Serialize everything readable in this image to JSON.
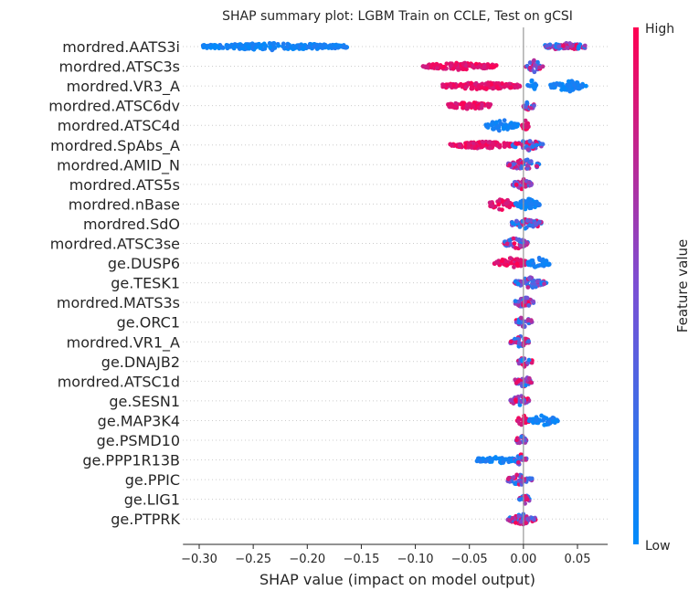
{
  "chart_data": {
    "type": "scatter",
    "title": "SHAP summary plot: LGBM Train on CCLE, Test on gCSI",
    "xlabel": "SHAP value (impact on model output)",
    "ylabel": "",
    "xlim": [
      -0.315,
      0.078
    ],
    "xticks": [
      {
        "value": -0.3,
        "label": "−0.30"
      },
      {
        "value": -0.25,
        "label": "−0.25"
      },
      {
        "value": -0.2,
        "label": "−0.20"
      },
      {
        "value": -0.15,
        "label": "−0.15"
      },
      {
        "value": -0.1,
        "label": "−0.10"
      },
      {
        "value": -0.05,
        "label": "−0.05"
      },
      {
        "value": 0.0,
        "label": "0.00"
      },
      {
        "value": 0.05,
        "label": "0.05"
      }
    ],
    "grid": false,
    "zero_line": true,
    "colorbar": {
      "label": "Feature value",
      "high_label": "High",
      "low_label": "Low",
      "high_color": "#ff0052",
      "mid_color": "#7b4fd4",
      "low_color": "#008bfb"
    },
    "features": [
      {
        "name": "mordred.AATS3i",
        "clusters": [
          {
            "min": -0.297,
            "max": -0.163,
            "value": "low"
          },
          {
            "min": 0.02,
            "max": 0.058,
            "value": "mixed"
          }
        ]
      },
      {
        "name": "mordred.ATSC3s",
        "clusters": [
          {
            "min": -0.093,
            "max": -0.025,
            "value": "high"
          },
          {
            "min": 0.002,
            "max": 0.018,
            "value": "mixed"
          }
        ]
      },
      {
        "name": "mordred.VR3_A",
        "clusters": [
          {
            "min": -0.075,
            "max": -0.003,
            "value": "high"
          },
          {
            "min": 0.003,
            "max": 0.012,
            "value": "low"
          },
          {
            "min": 0.025,
            "max": 0.058,
            "value": "low"
          }
        ]
      },
      {
        "name": "mordred.ATSC6dv",
        "clusters": [
          {
            "min": -0.07,
            "max": -0.03,
            "value": "high"
          },
          {
            "min": 0.0,
            "max": 0.01,
            "value": "mixed"
          }
        ]
      },
      {
        "name": "mordred.ATSC4d",
        "clusters": [
          {
            "min": -0.037,
            "max": -0.005,
            "value": "low"
          },
          {
            "min": -0.002,
            "max": 0.005,
            "value": "high"
          }
        ]
      },
      {
        "name": "mordred.SpAbs_A",
        "clusters": [
          {
            "min": -0.068,
            "max": -0.01,
            "value": "high"
          },
          {
            "min": -0.01,
            "max": 0.018,
            "value": "mixed"
          }
        ]
      },
      {
        "name": "mordred.AMID_N",
        "clusters": [
          {
            "min": -0.015,
            "max": 0.016,
            "value": "mixed"
          }
        ]
      },
      {
        "name": "mordred.ATS5s",
        "clusters": [
          {
            "min": -0.01,
            "max": 0.008,
            "value": "mixed"
          }
        ]
      },
      {
        "name": "mordred.nBase",
        "clusters": [
          {
            "min": -0.033,
            "max": -0.008,
            "value": "high"
          },
          {
            "min": -0.008,
            "max": 0.015,
            "value": "low"
          }
        ]
      },
      {
        "name": "mordred.SdO",
        "clusters": [
          {
            "min": -0.012,
            "max": 0.018,
            "value": "mixed"
          }
        ]
      },
      {
        "name": "mordred.ATSC3se",
        "clusters": [
          {
            "min": -0.018,
            "max": 0.004,
            "value": "mixed"
          }
        ]
      },
      {
        "name": "ge.DUSP6",
        "clusters": [
          {
            "min": -0.027,
            "max": 0.004,
            "value": "high"
          },
          {
            "min": 0.004,
            "max": 0.024,
            "value": "low"
          }
        ]
      },
      {
        "name": "ge.TESK1",
        "clusters": [
          {
            "min": -0.008,
            "max": 0.022,
            "value": "mixed"
          }
        ]
      },
      {
        "name": "mordred.MATS3s",
        "clusters": [
          {
            "min": -0.008,
            "max": 0.01,
            "value": "mixed"
          }
        ]
      },
      {
        "name": "ge.ORC1",
        "clusters": [
          {
            "min": -0.008,
            "max": 0.008,
            "value": "mixed"
          }
        ]
      },
      {
        "name": "mordred.VR1_A",
        "clusters": [
          {
            "min": -0.012,
            "max": 0.006,
            "value": "mixed"
          }
        ]
      },
      {
        "name": "ge.DNAJB2",
        "clusters": [
          {
            "min": -0.005,
            "max": 0.008,
            "value": "mixed"
          }
        ]
      },
      {
        "name": "mordred.ATSC1d",
        "clusters": [
          {
            "min": -0.008,
            "max": 0.008,
            "value": "mixed"
          }
        ]
      },
      {
        "name": "ge.SESN1",
        "clusters": [
          {
            "min": -0.012,
            "max": 0.006,
            "value": "mixed"
          }
        ]
      },
      {
        "name": "ge.MAP3K4",
        "clusters": [
          {
            "min": -0.006,
            "max": 0.005,
            "value": "high"
          },
          {
            "min": 0.005,
            "max": 0.032,
            "value": "low"
          }
        ]
      },
      {
        "name": "ge.PSMD10",
        "clusters": [
          {
            "min": -0.007,
            "max": 0.003,
            "value": "mixed"
          }
        ]
      },
      {
        "name": "ge.PPP1R13B",
        "clusters": [
          {
            "min": -0.043,
            "max": -0.008,
            "value": "low"
          },
          {
            "min": -0.008,
            "max": 0.003,
            "value": "mixed"
          }
        ]
      },
      {
        "name": "ge.PPIC",
        "clusters": [
          {
            "min": -0.015,
            "max": 0.008,
            "value": "mixed"
          }
        ]
      },
      {
        "name": "ge.LIG1",
        "clusters": [
          {
            "min": -0.004,
            "max": 0.006,
            "value": "mixed"
          }
        ]
      },
      {
        "name": "ge.PTPRK",
        "clusters": [
          {
            "min": -0.015,
            "max": 0.012,
            "value": "mixed"
          }
        ]
      }
    ]
  }
}
